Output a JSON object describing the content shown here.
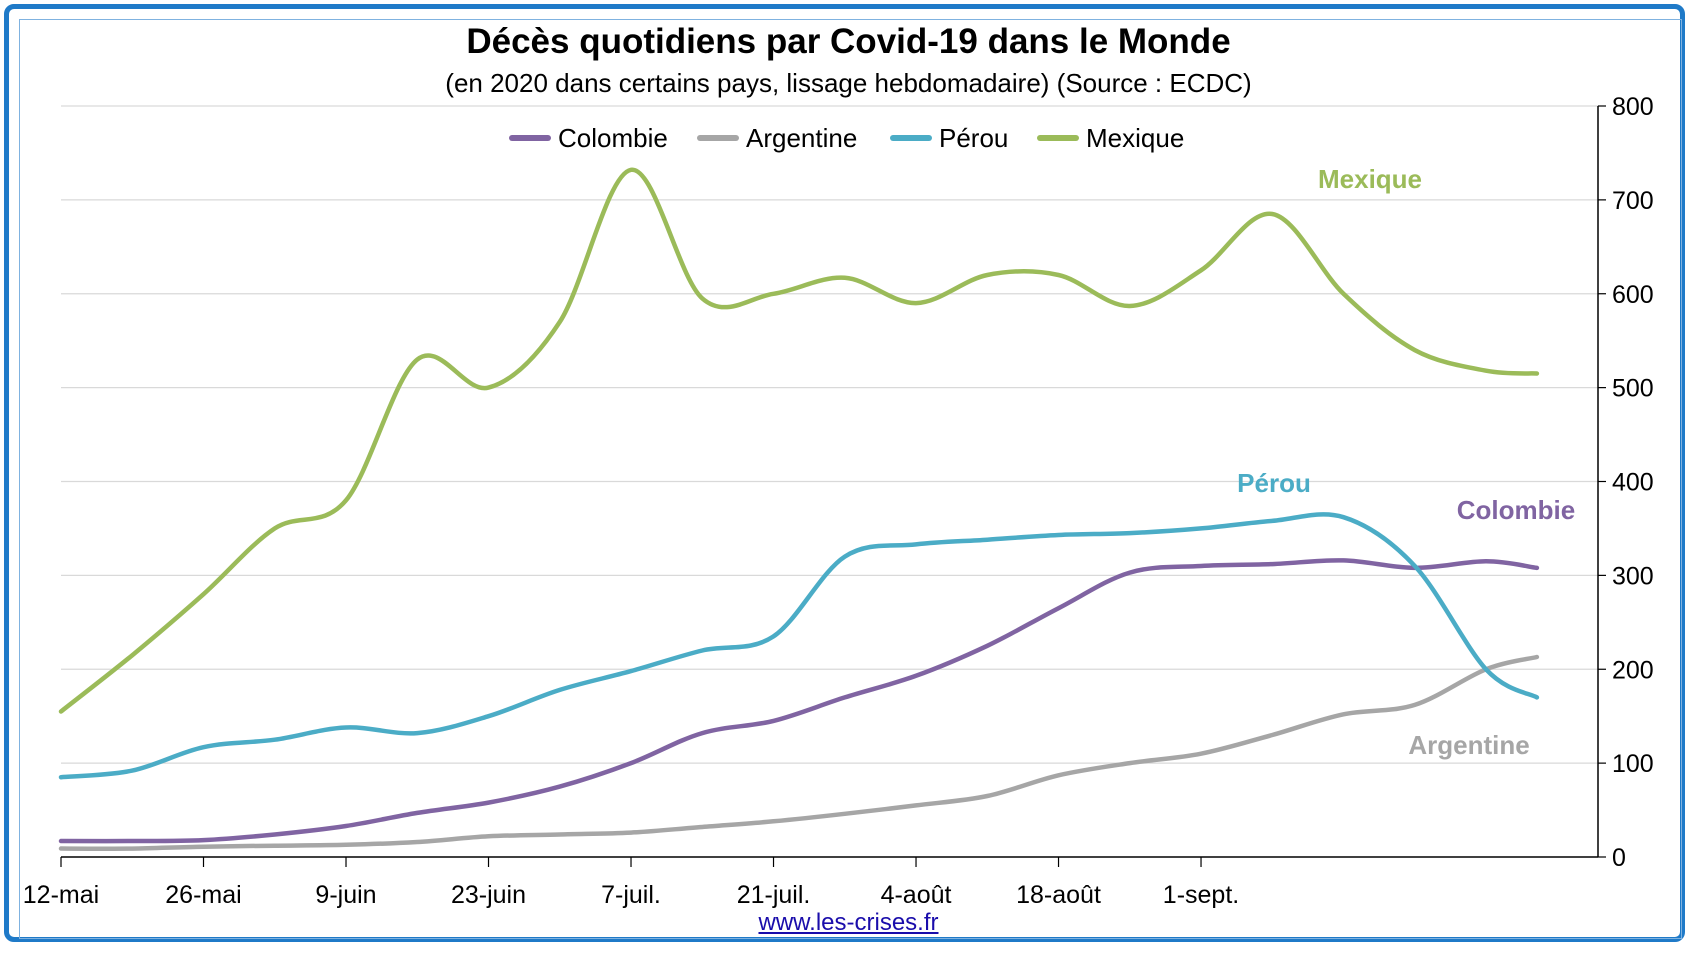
{
  "chart_data": {
    "type": "line",
    "title": "Décès quotidiens par Covid-19 dans le Monde",
    "subtitle": "(en 2020 dans certains pays, lissage hebdomadaire) (Source : ECDC)",
    "source": "www.les-crises.fr",
    "x_tick_labels": [
      "12-mai",
      "26-mai",
      "9-juin",
      "23-juin",
      "7-juil.",
      "21-juil.",
      "4-août",
      "18-août",
      "1-sept."
    ],
    "x_day_count": 116,
    "ylim": [
      0,
      800
    ],
    "y_ticks": [
      0,
      100,
      200,
      300,
      400,
      500,
      600,
      700,
      800
    ],
    "y_axis_position": "right",
    "grid": true,
    "legend_position": "top",
    "series": [
      {
        "name": "Colombie",
        "label": "Colombie",
        "color": "#8064a2",
        "points": [
          [
            0,
            17
          ],
          [
            7,
            17
          ],
          [
            14,
            18
          ],
          [
            21,
            24
          ],
          [
            28,
            33
          ],
          [
            35,
            47
          ],
          [
            42,
            58
          ],
          [
            49,
            75
          ],
          [
            56,
            100
          ],
          [
            63,
            132
          ],
          [
            70,
            145
          ],
          [
            77,
            170
          ],
          [
            84,
            193
          ],
          [
            91,
            225
          ],
          [
            98,
            265
          ],
          [
            105,
            303
          ],
          [
            112,
            310
          ],
          [
            119,
            312
          ],
          [
            126,
            316
          ],
          [
            133,
            308
          ],
          [
            140,
            315
          ],
          [
            145,
            308
          ]
        ]
      },
      {
        "name": "Argentine",
        "label": "Argentine",
        "color": "#a6a6a6",
        "points": [
          [
            0,
            9
          ],
          [
            7,
            9
          ],
          [
            14,
            11
          ],
          [
            21,
            12
          ],
          [
            28,
            13
          ],
          [
            35,
            16
          ],
          [
            42,
            22
          ],
          [
            49,
            24
          ],
          [
            56,
            26
          ],
          [
            63,
            32
          ],
          [
            70,
            38
          ],
          [
            77,
            46
          ],
          [
            84,
            55
          ],
          [
            91,
            65
          ],
          [
            98,
            87
          ],
          [
            105,
            100
          ],
          [
            112,
            110
          ],
          [
            119,
            130
          ],
          [
            126,
            152
          ],
          [
            133,
            162
          ],
          [
            140,
            200
          ],
          [
            145,
            213
          ]
        ]
      },
      {
        "name": "Pérou",
        "label": "Pérou",
        "color": "#4bacc6",
        "points": [
          [
            0,
            85
          ],
          [
            7,
            92
          ],
          [
            14,
            117
          ],
          [
            21,
            125
          ],
          [
            28,
            138
          ],
          [
            35,
            132
          ],
          [
            42,
            150
          ],
          [
            49,
            178
          ],
          [
            56,
            198
          ],
          [
            63,
            220
          ],
          [
            70,
            235
          ],
          [
            77,
            320
          ],
          [
            84,
            333
          ],
          [
            91,
            338
          ],
          [
            98,
            343
          ],
          [
            105,
            345
          ],
          [
            112,
            350
          ],
          [
            119,
            358
          ],
          [
            126,
            362
          ],
          [
            133,
            310
          ],
          [
            140,
            200
          ],
          [
            145,
            170
          ]
        ]
      },
      {
        "name": "Mexique",
        "label": "Mexique",
        "color": "#9bbb59",
        "points": [
          [
            0,
            155
          ],
          [
            7,
            215
          ],
          [
            14,
            280
          ],
          [
            21,
            350
          ],
          [
            28,
            380
          ],
          [
            35,
            530
          ],
          [
            42,
            500
          ],
          [
            49,
            570
          ],
          [
            56,
            732
          ],
          [
            63,
            595
          ],
          [
            70,
            600
          ],
          [
            77,
            617
          ],
          [
            84,
            590
          ],
          [
            91,
            620
          ],
          [
            98,
            620
          ],
          [
            105,
            587
          ],
          [
            112,
            625
          ],
          [
            119,
            685
          ],
          [
            126,
            600
          ],
          [
            133,
            540
          ],
          [
            140,
            518
          ],
          [
            145,
            515
          ]
        ]
      }
    ],
    "annotations": [
      "Mexique",
      "Pérou",
      "Colombie",
      "Argentine"
    ]
  }
}
